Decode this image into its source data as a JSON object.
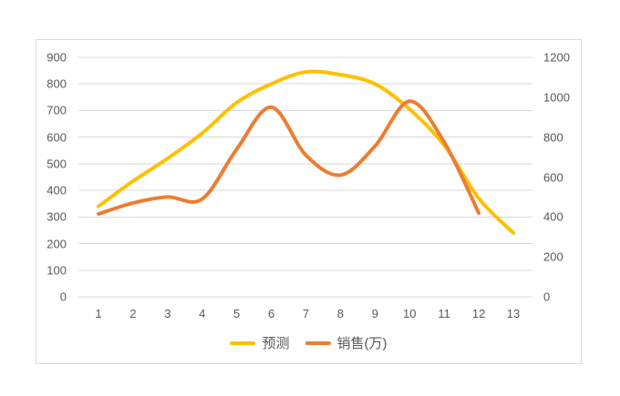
{
  "page": {
    "background": "#FFFFFF"
  },
  "chart_data": {
    "type": "line",
    "title": "",
    "xlabel": "",
    "ylabel": "",
    "categories": [
      "1",
      "2",
      "3",
      "4",
      "5",
      "6",
      "7",
      "8",
      "9",
      "10",
      "11",
      "12",
      "13"
    ],
    "series": [
      {
        "name": "预测",
        "color": "#FFC000",
        "axis": "left",
        "smooth": true,
        "values": [
          340,
          435,
          520,
          615,
          730,
          800,
          845,
          835,
          800,
          705,
          570,
          370,
          240
        ]
      },
      {
        "name": "销售(万)",
        "color": "#ED7D31",
        "axis": "right",
        "smooth": true,
        "values": [
          415,
          470,
          500,
          490,
          740,
          950,
          710,
          610,
          755,
          980,
          775,
          420
        ]
      }
    ],
    "left_axis": {
      "min": 0,
      "max": 900,
      "step": 100,
      "tick_labels": [
        "900",
        "800",
        "700",
        "600",
        "500",
        "400",
        "300",
        "200",
        "100",
        "0"
      ]
    },
    "right_axis": {
      "min": 0,
      "max": 1200,
      "step": 200,
      "tick_labels": [
        "1200",
        "1000",
        "800",
        "600",
        "400",
        "200",
        "0"
      ]
    },
    "legend": {
      "position": "bottom",
      "entries": [
        "预测",
        "销售(万)"
      ]
    },
    "grid": true,
    "colors": {
      "grid": "#D9D9D9",
      "frame_border": "#D9D9D9",
      "tick_label": "#595959",
      "legend_label": "#595959",
      "background": "#FFFFFF"
    }
  }
}
